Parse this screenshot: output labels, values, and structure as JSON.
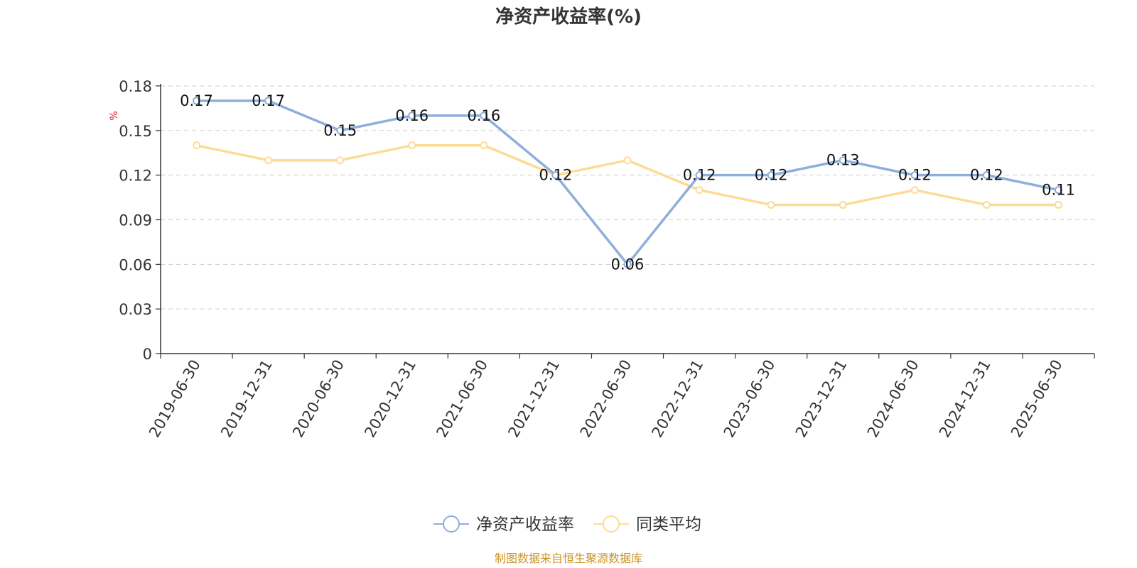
{
  "chart_data": {
    "type": "line",
    "title": "净资产收益率(%)",
    "ylabel": "%",
    "xlabel": "",
    "categories": [
      "2019-06-30",
      "2019-12-31",
      "2020-06-30",
      "2020-12-31",
      "2021-06-30",
      "2021-12-31",
      "2022-06-30",
      "2022-12-31",
      "2023-06-30",
      "2023-12-31",
      "2024-06-30",
      "2024-12-31",
      "2025-06-30"
    ],
    "yticks": [
      "0",
      "0.03",
      "0.06",
      "0.09",
      "0.12",
      "0.15",
      "0.18"
    ],
    "ylim": [
      0,
      0.18
    ],
    "grid": true,
    "legend_position": "bottom-center",
    "series": [
      {
        "name": "净资产收益率",
        "color": "#8eaedb",
        "show_labels": true,
        "values": [
          0.17,
          0.17,
          0.15,
          0.16,
          0.16,
          0.12,
          0.06,
          0.12,
          0.12,
          0.13,
          0.12,
          0.12,
          0.11
        ]
      },
      {
        "name": "同类平均",
        "color": "#fddb96",
        "show_labels": false,
        "values": [
          0.14,
          0.13,
          0.13,
          0.14,
          0.14,
          0.12,
          0.13,
          0.11,
          0.1,
          0.1,
          0.11,
          0.1,
          0.1
        ]
      }
    ],
    "source": "制图数据来自恒生聚源数据库"
  }
}
